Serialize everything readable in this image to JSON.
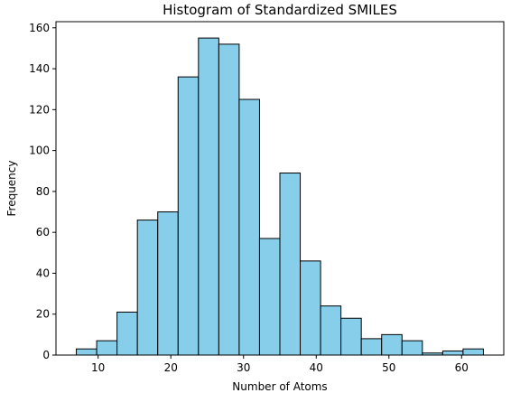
{
  "chart_data": {
    "type": "bar",
    "title": "Histogram of Standardized SMILES",
    "xlabel": "Number of Atoms",
    "ylabel": "Frequency",
    "xlim": [
      4.2,
      65.8
    ],
    "ylim": [
      0,
      163
    ],
    "xticks": [
      10,
      20,
      30,
      40,
      50,
      60
    ],
    "yticks": [
      0,
      20,
      40,
      60,
      80,
      100,
      120,
      140,
      160
    ],
    "bar_color": "#87ceeb",
    "edge_color": "#000000",
    "grid": false,
    "bin_edges": [
      7,
      9.8,
      12.6,
      15.4,
      18.2,
      21,
      23.8,
      26.6,
      29.4,
      32.2,
      35,
      37.8,
      40.6,
      43.4,
      46.2,
      49,
      51.8,
      54.6,
      57.4,
      60.2,
      63
    ],
    "counts": [
      3,
      7,
      21,
      66,
      70,
      136,
      155,
      152,
      125,
      57,
      89,
      46,
      24,
      18,
      8,
      10,
      7,
      1,
      2,
      3
    ]
  }
}
